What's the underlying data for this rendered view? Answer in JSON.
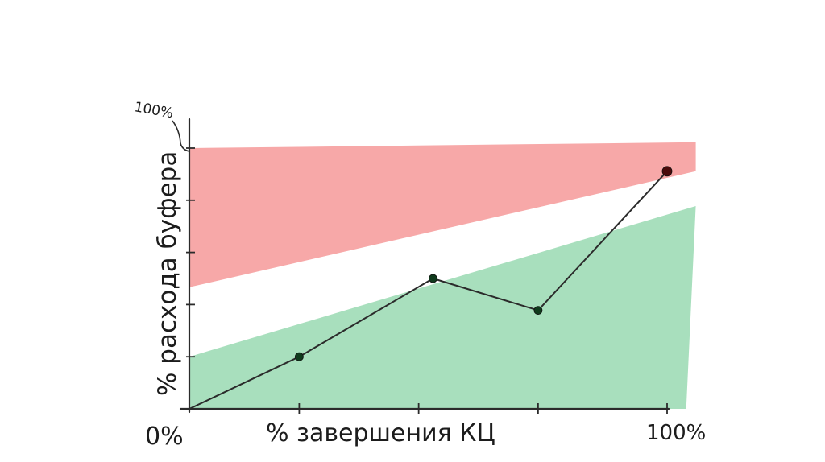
{
  "chart_data": {
    "type": "line",
    "title": "",
    "xlabel": "% завершения КЦ",
    "ylabel": "% расхода буфера",
    "x_min_label": "0%",
    "x_max_label": "100%",
    "y_max_label": "100%",
    "xlim": [
      0,
      100
    ],
    "ylim": [
      0,
      100
    ],
    "x_ticks": [
      23,
      48,
      73,
      100
    ],
    "y_ticks": [
      0,
      18,
      36,
      54,
      72,
      90
    ],
    "grid": false,
    "legend": "none",
    "zones": [
      {
        "kind": "red",
        "color": "#f7a8a8",
        "lower": [
          [
            0,
            42
          ],
          [
            106,
            82
          ]
        ],
        "upper": [
          [
            0,
            90
          ],
          [
            106,
            92
          ]
        ]
      },
      {
        "kind": "green",
        "color": "#a8dfbd",
        "lower": [
          [
            0,
            0
          ],
          [
            104,
            0
          ]
        ],
        "upper": [
          [
            0,
            18
          ],
          [
            106,
            70
          ]
        ]
      }
    ],
    "series": [
      {
        "points": [
          [
            0,
            0
          ],
          [
            23,
            18
          ],
          [
            51,
            45
          ],
          [
            73,
            34
          ],
          [
            100,
            82
          ]
        ],
        "color": "#2b2b2b"
      }
    ]
  }
}
